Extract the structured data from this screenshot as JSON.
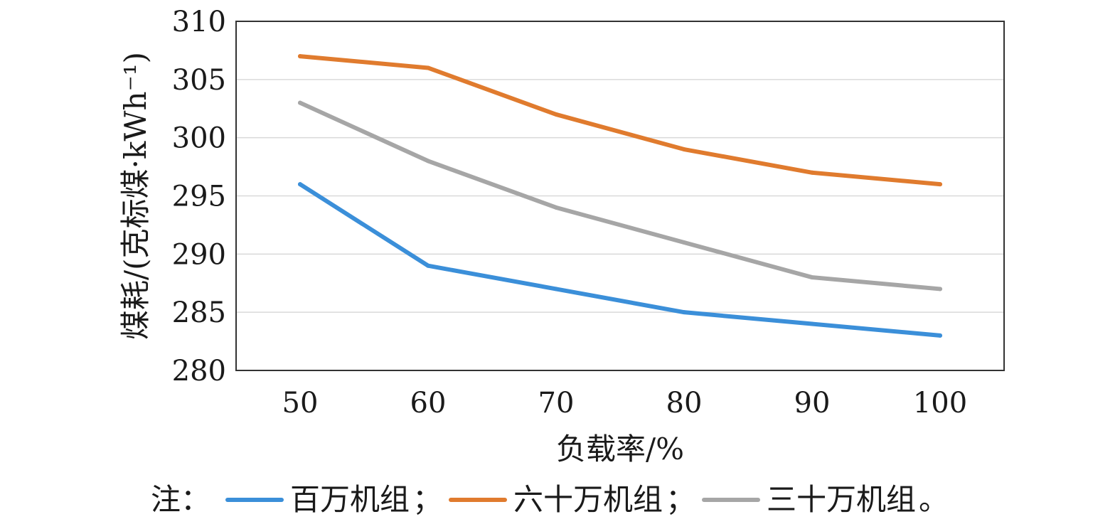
{
  "chart_data": {
    "type": "line",
    "xlabel": "负载率/%",
    "ylabel": "煤耗/(克标煤·kWh⁻¹)",
    "x": [
      50,
      60,
      70,
      80,
      90,
      100
    ],
    "x_ticks": [
      "50",
      "60",
      "70",
      "80",
      "90",
      "100"
    ],
    "ylim": [
      280,
      310
    ],
    "y_ticks": [
      "280",
      "285",
      "290",
      "295",
      "300",
      "305",
      "310"
    ],
    "grid": "horizontal",
    "series": [
      {
        "name": "百万机组",
        "color": "#3b8fd9",
        "values": [
          296,
          289,
          287,
          285,
          284,
          283
        ]
      },
      {
        "name": "六十万机组",
        "color": "#e07b2e",
        "values": [
          307,
          306,
          302,
          299,
          297,
          296
        ]
      },
      {
        "name": "三十万机组",
        "color": "#a6a6a6",
        "values": [
          303,
          298,
          294,
          291,
          288,
          287
        ]
      }
    ],
    "legend": {
      "placement": "bottom",
      "prefix": "注：",
      "separators": [
        "；",
        "；",
        "。"
      ]
    }
  }
}
